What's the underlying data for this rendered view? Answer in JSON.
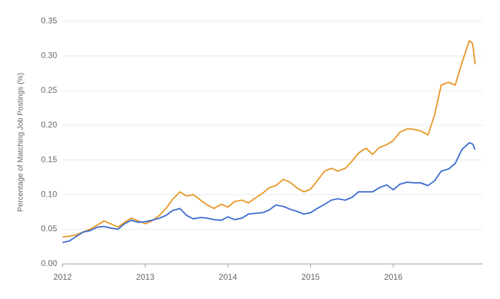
{
  "chart_data": {
    "type": "line",
    "ylabel": "Percentage of Matching Job Postings (%)",
    "x": [
      2012.0,
      2012.08,
      2012.17,
      2012.25,
      2012.33,
      2012.42,
      2012.5,
      2012.58,
      2012.67,
      2012.75,
      2012.83,
      2012.92,
      2013.0,
      2013.08,
      2013.17,
      2013.25,
      2013.33,
      2013.42,
      2013.5,
      2013.58,
      2013.67,
      2013.75,
      2013.83,
      2013.92,
      2014.0,
      2014.08,
      2014.17,
      2014.25,
      2014.33,
      2014.42,
      2014.5,
      2014.58,
      2014.67,
      2014.75,
      2014.83,
      2014.92,
      2015.0,
      2015.08,
      2015.17,
      2015.25,
      2015.33,
      2015.42,
      2015.5,
      2015.58,
      2015.67,
      2015.75,
      2015.83,
      2015.92,
      2016.0,
      2016.08,
      2016.17,
      2016.25,
      2016.33,
      2016.42,
      2016.5,
      2016.58,
      2016.67,
      2016.75,
      2016.83,
      2016.92,
      2016.96,
      2016.99
    ],
    "series": [
      {
        "color": "#e8982a",
        "values": [
          0.039,
          0.04,
          0.042,
          0.046,
          0.05,
          0.056,
          0.062,
          0.058,
          0.053,
          0.06,
          0.066,
          0.062,
          0.058,
          0.062,
          0.07,
          0.08,
          0.093,
          0.104,
          0.098,
          0.1,
          0.092,
          0.085,
          0.08,
          0.086,
          0.082,
          0.09,
          0.092,
          0.088,
          0.095,
          0.102,
          0.11,
          0.113,
          0.122,
          0.118,
          0.11,
          0.104,
          0.108,
          0.12,
          0.134,
          0.138,
          0.134,
          0.138,
          0.148,
          0.16,
          0.167,
          0.158,
          0.168,
          0.172,
          0.178,
          0.19,
          0.195,
          0.194,
          0.192,
          0.186,
          0.215,
          0.258,
          0.262,
          0.258,
          0.29,
          0.322,
          0.318,
          0.288
        ]
      },
      {
        "color": "#3f6fd1",
        "values": [
          0.031,
          0.033,
          0.04,
          0.046,
          0.048,
          0.053,
          0.054,
          0.052,
          0.05,
          0.058,
          0.063,
          0.06,
          0.061,
          0.063,
          0.066,
          0.07,
          0.077,
          0.08,
          0.07,
          0.065,
          0.067,
          0.066,
          0.064,
          0.063,
          0.068,
          0.064,
          0.066,
          0.072,
          0.073,
          0.074,
          0.078,
          0.085,
          0.083,
          0.079,
          0.076,
          0.072,
          0.074,
          0.08,
          0.086,
          0.092,
          0.094,
          0.092,
          0.096,
          0.104,
          0.104,
          0.104,
          0.11,
          0.114,
          0.107,
          0.115,
          0.118,
          0.117,
          0.117,
          0.113,
          0.12,
          0.134,
          0.137,
          0.145,
          0.165,
          0.175,
          0.173,
          0.165
        ]
      }
    ],
    "xlim": [
      2012,
      2017
    ],
    "xticks": [
      2012,
      2013,
      2014,
      2015,
      2016
    ],
    "ylim": [
      0,
      0.35
    ],
    "yticks": [
      {
        "value": 0,
        "label": "0.00"
      },
      {
        "value": 0.05,
        "label": "0.05"
      },
      {
        "value": 0.1,
        "label": "0.10"
      },
      {
        "value": 0.15,
        "label": "0.15"
      },
      {
        "value": 0.2,
        "label": "0.20"
      },
      {
        "value": 0.25,
        "label": "0.25"
      },
      {
        "value": 0.3,
        "label": "0.30"
      },
      {
        "value": 0.35,
        "label": "0.35"
      }
    ],
    "grid": true
  }
}
